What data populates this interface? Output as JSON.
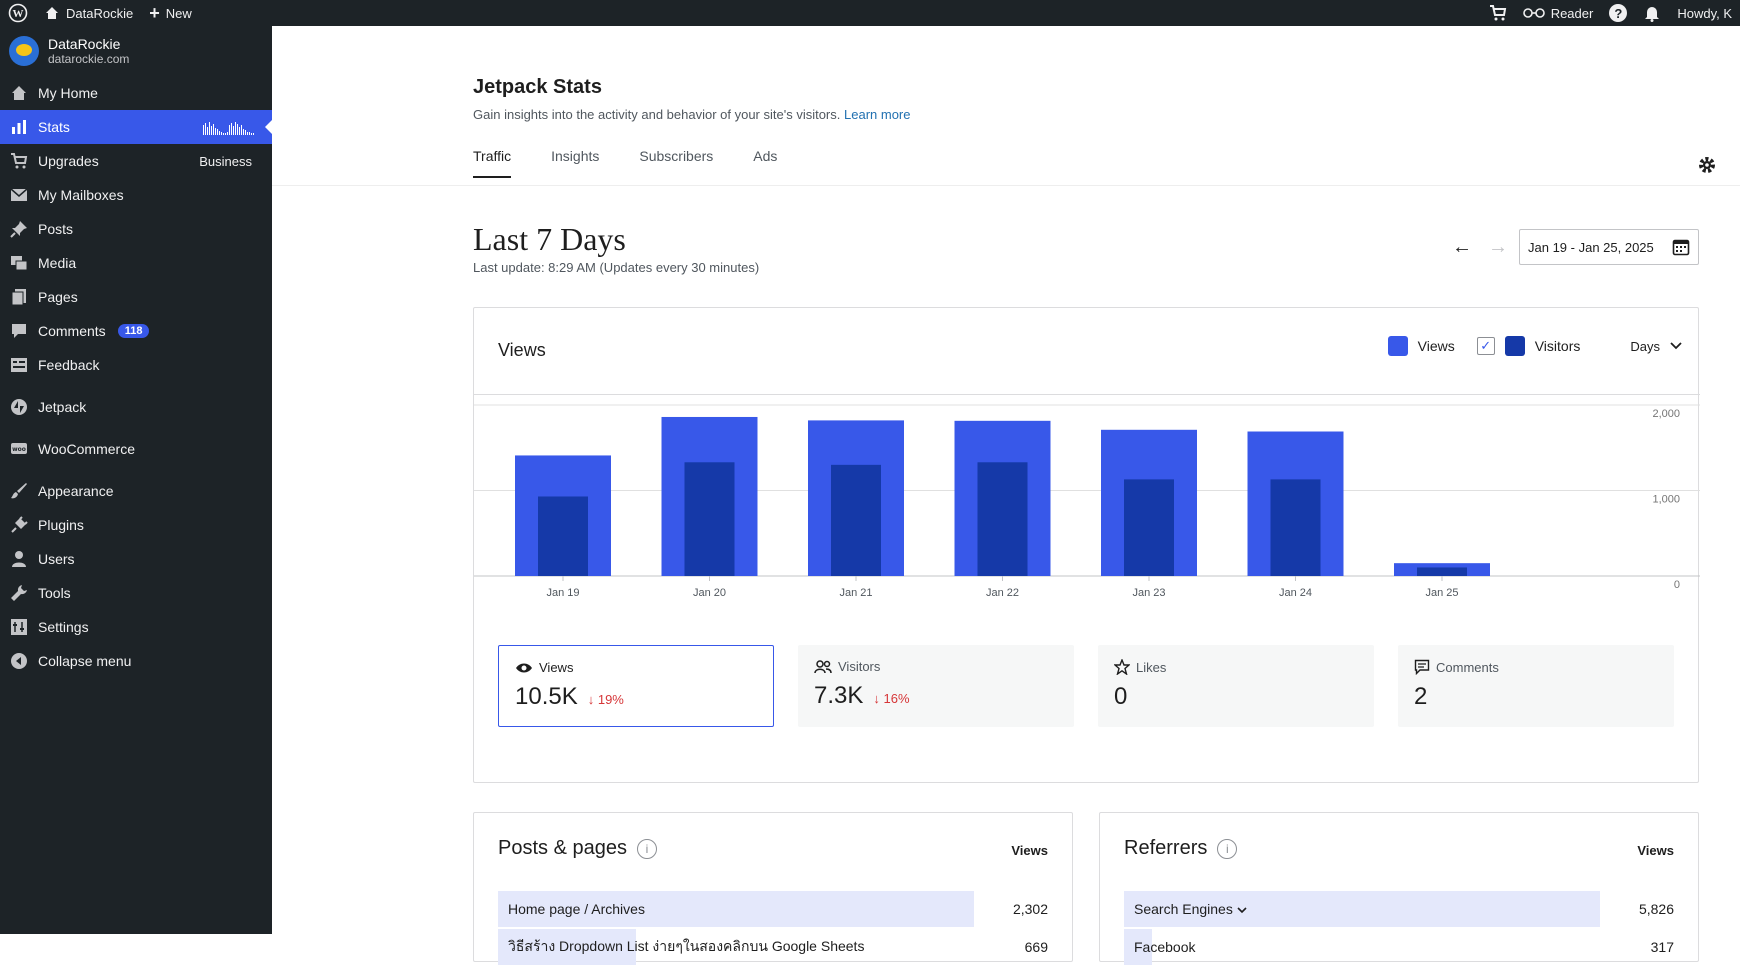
{
  "topbar": {
    "site_name": "DataRockie",
    "new_label": "New",
    "reader_label": "Reader",
    "howdy_label": "Howdy, K"
  },
  "sidebar": {
    "site_name": "DataRockie",
    "site_url": "datarockie.com",
    "items": [
      {
        "label": "My Home",
        "icon": "home-icon"
      },
      {
        "label": "Stats",
        "icon": "stats-icon",
        "active": true
      },
      {
        "label": "Upgrades",
        "icon": "cart-icon",
        "tag": "Business"
      },
      {
        "label": "My Mailboxes",
        "icon": "mail-icon"
      },
      {
        "label": "Posts",
        "icon": "pin-icon"
      },
      {
        "label": "Media",
        "icon": "media-icon"
      },
      {
        "label": "Pages",
        "icon": "pages-icon"
      },
      {
        "label": "Comments",
        "icon": "comment-icon",
        "badge": "118"
      },
      {
        "label": "Feedback",
        "icon": "feedback-icon"
      },
      {
        "label": "Jetpack",
        "icon": "jetpack-icon"
      },
      {
        "label": "WooCommerce",
        "icon": "woo-icon"
      },
      {
        "label": "Appearance",
        "icon": "brush-icon"
      },
      {
        "label": "Plugins",
        "icon": "plug-icon"
      },
      {
        "label": "Users",
        "icon": "user-icon"
      },
      {
        "label": "Tools",
        "icon": "wrench-icon"
      },
      {
        "label": "Settings",
        "icon": "settings-icon"
      },
      {
        "label": "Collapse menu",
        "icon": "collapse-icon"
      }
    ]
  },
  "header": {
    "title": "Jetpack Stats",
    "subtitle": "Gain insights into the activity and behavior of your site's visitors.",
    "learn_more": "Learn more",
    "tabs": [
      "Traffic",
      "Insights",
      "Subscribers",
      "Ads"
    ]
  },
  "period": {
    "title": "Last 7 Days",
    "last_update": "Last update: 8:29 AM (Updates every 30 minutes)",
    "date_range": "Jan 19 - Jan 25, 2025"
  },
  "chart_card": {
    "title": "Views",
    "legend_views": "Views",
    "legend_visitors": "Visitors",
    "interval": "Days"
  },
  "colors": {
    "views": "#3858e9",
    "visitors": "#1539a8"
  },
  "chart_data": {
    "type": "bar",
    "categories": [
      "Jan 19",
      "Jan 20",
      "Jan 21",
      "Jan 22",
      "Jan 23",
      "Jan 24",
      "Jan 25"
    ],
    "series": [
      {
        "name": "Views",
        "values": [
          1410,
          1860,
          1820,
          1815,
          1710,
          1690,
          150
        ]
      },
      {
        "name": "Visitors",
        "values": [
          930,
          1330,
          1300,
          1330,
          1130,
          1130,
          100
        ]
      }
    ],
    "yticks": [
      "2,000",
      "1,000",
      "0"
    ],
    "ylim": [
      0,
      2000
    ]
  },
  "stats": [
    {
      "label": "Views",
      "value": "10.5K",
      "change": "19%",
      "icon": "eye-icon"
    },
    {
      "label": "Visitors",
      "value": "7.3K",
      "change": "16%",
      "icon": "people-icon"
    },
    {
      "label": "Likes",
      "value": "0",
      "change": "",
      "icon": "star-icon"
    },
    {
      "label": "Comments",
      "value": "2",
      "change": "",
      "icon": "comment-icon"
    }
  ],
  "posts_panel": {
    "title": "Posts & pages",
    "column": "Views",
    "rows": [
      {
        "label": "Home page / Archives",
        "value": "2,302",
        "ratio": 1.0
      },
      {
        "label": "วิธีสร้าง Dropdown List ง่ายๆในสองคลิกบน Google Sheets",
        "value": "669",
        "ratio": 0.29
      }
    ]
  },
  "referrers_panel": {
    "title": "Referrers",
    "column": "Views",
    "rows": [
      {
        "label": "Search Engines",
        "value": "5,826",
        "ratio": 1.0
      },
      {
        "label": "Facebook",
        "value": "317",
        "ratio": 0.05
      }
    ]
  }
}
